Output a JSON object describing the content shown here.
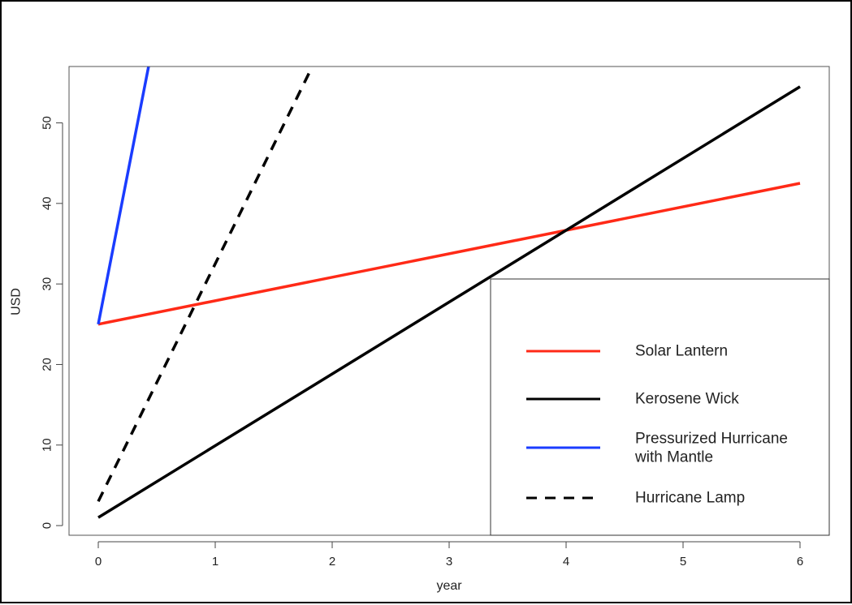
{
  "chart_data": {
    "type": "line",
    "title": "",
    "xlabel": "year",
    "ylabel": "USD",
    "xlim": [
      -0.25,
      6.25
    ],
    "ylim": [
      -1.2,
      57.0
    ],
    "xticks": [
      0,
      1,
      2,
      3,
      4,
      5,
      6
    ],
    "yticks": [
      0,
      10,
      20,
      30,
      40,
      50
    ],
    "grid": false,
    "legend_position": "bottom-right",
    "series": [
      {
        "name": "Solar Lantern",
        "color": "#ff2a17",
        "style": "solid",
        "x": [
          0,
          6
        ],
        "y": [
          25,
          42.5
        ]
      },
      {
        "name": "Kerosene Wick",
        "color": "#000000",
        "style": "solid",
        "x": [
          0,
          6
        ],
        "y": [
          1,
          54.5
        ]
      },
      {
        "name": "Pressurized Hurricane with Mantle",
        "color": "#1a3cff",
        "style": "solid",
        "x": [
          0,
          0.43
        ],
        "y": [
          25,
          57
        ]
      },
      {
        "name": "Hurricane Lamp",
        "color": "#000000",
        "style": "dashed",
        "x": [
          0,
          1.83
        ],
        "y": [
          3,
          57
        ]
      }
    ]
  }
}
